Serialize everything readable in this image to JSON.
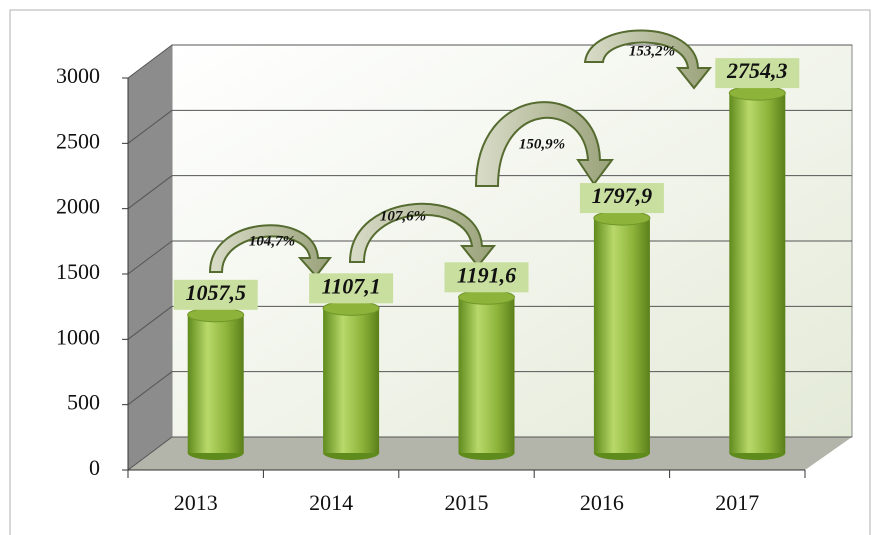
{
  "chart_data": {
    "type": "bar",
    "categories": [
      "2013",
      "2014",
      "2015",
      "2016",
      "2017"
    ],
    "values": [
      1057.5,
      1107.1,
      1191.6,
      1797.9,
      2754.3
    ],
    "value_labels": [
      "1057,5",
      "1107,1",
      "1191,6",
      "1797,9",
      "2754,3"
    ],
    "annotations": [
      "104,7%",
      "107,6%",
      "150,9%",
      "153,2%"
    ],
    "color": "#8db33a",
    "ylim": [
      0,
      3000
    ],
    "yticks": [
      0,
      500,
      1000,
      1500,
      2000,
      2500,
      3000
    ],
    "grid": true
  }
}
